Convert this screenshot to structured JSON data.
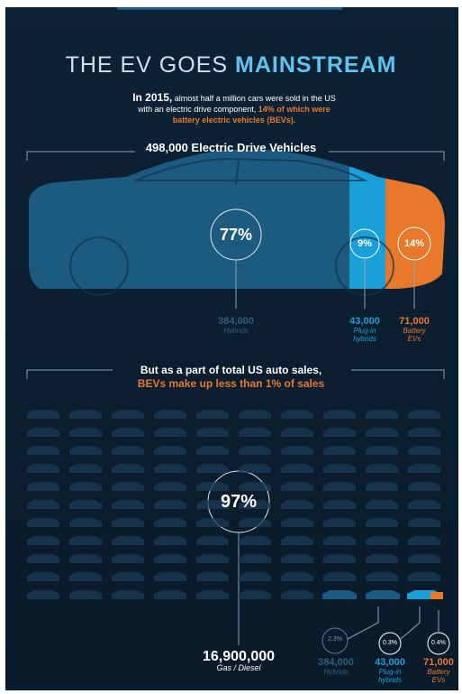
{
  "header": {
    "title_light": "THE EV GOES",
    "title_bold": "MAINSTREAM"
  },
  "intro": {
    "lead": "In 2015,",
    "text": "almost half a million cars were sold in the US with an electric drive component,",
    "highlight": "14% of which were battery electric vehicles (BEVs)."
  },
  "section1": {
    "heading": "498,000 Electric Drive Vehicles",
    "segments": [
      {
        "percent": "77%",
        "count": "384,000",
        "label": "Hybrids"
      },
      {
        "percent": "9%",
        "count": "43,000",
        "label": "Plug-in hybrids"
      },
      {
        "percent": "14%",
        "count": "71,000",
        "label": "Battery EVs"
      }
    ]
  },
  "section2": {
    "heading": "But as a part of total US auto sales,",
    "highlight": "BEVs make up less than 1% of sales",
    "main": {
      "percent": "97%",
      "count": "16,900,000",
      "label": "Gas / Diesel"
    },
    "segments": [
      {
        "percent": "2.3%",
        "count": "384,000",
        "label": "Hybrids"
      },
      {
        "percent": "0.3%",
        "count": "43,000",
        "label": "Plug-in hybrids"
      },
      {
        "percent": "0.4%",
        "count": "71,000",
        "label": "Battery EVs"
      }
    ]
  }
}
